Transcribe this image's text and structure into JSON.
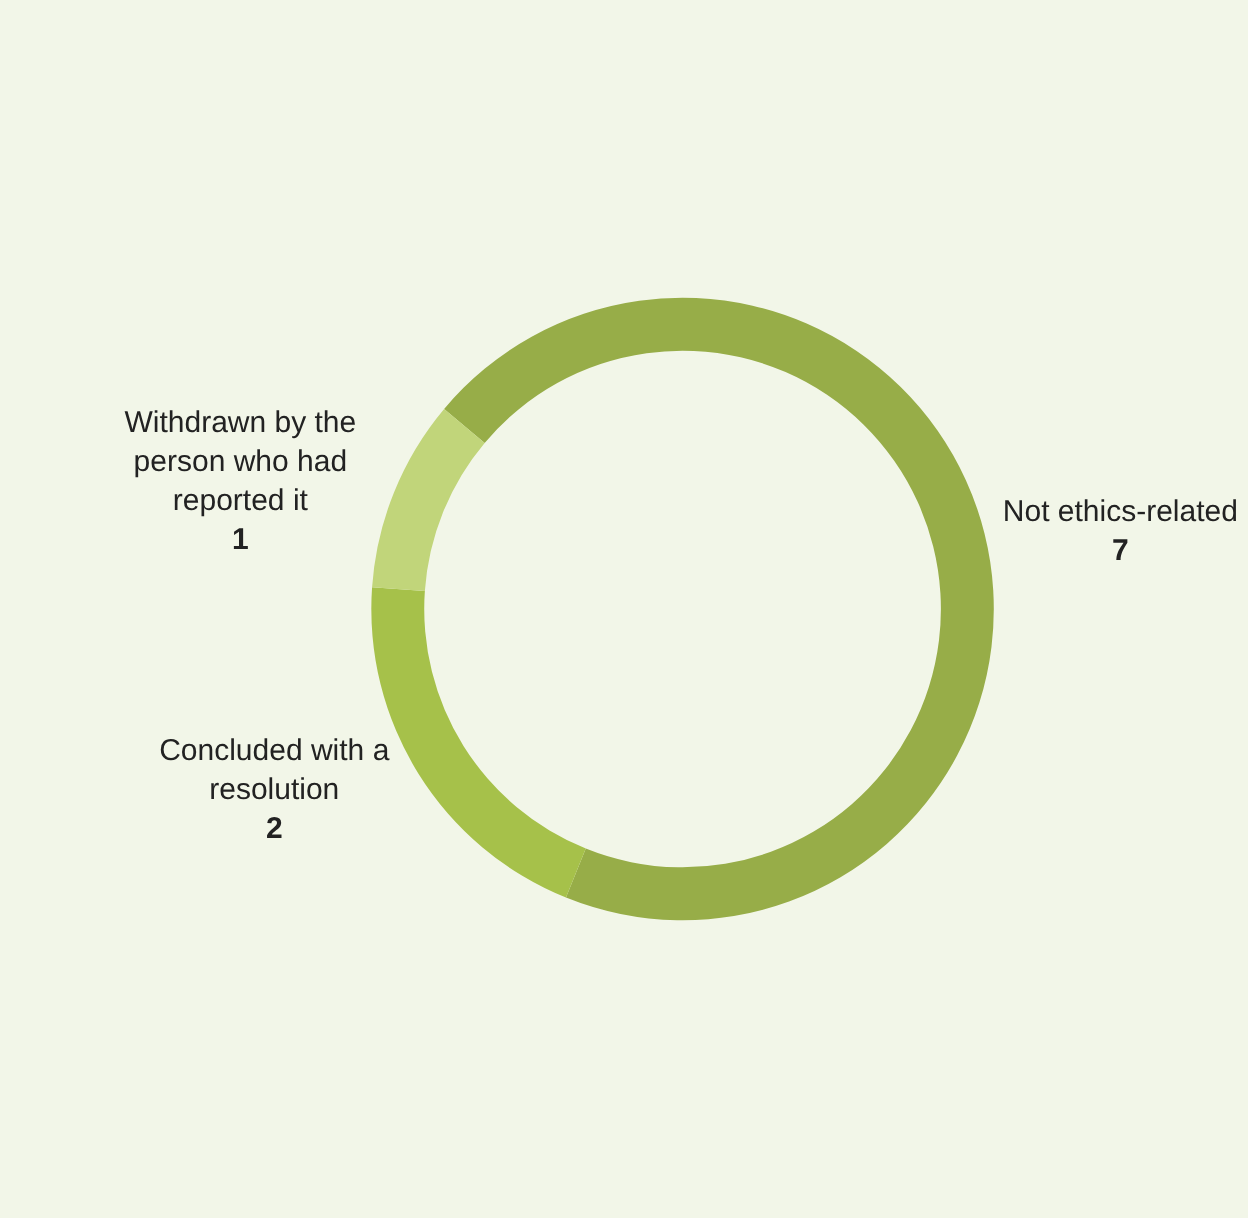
{
  "chart_data": {
    "type": "donut",
    "categories": [
      "Not ethics-related",
      "Concluded with a resolution",
      "Withdrawn by the person who had reported it"
    ],
    "values": [
      7,
      2,
      1
    ],
    "colors": [
      "#97ad48",
      "#a6c14a",
      "#c1d57a"
    ],
    "data_labels": true
  }
}
